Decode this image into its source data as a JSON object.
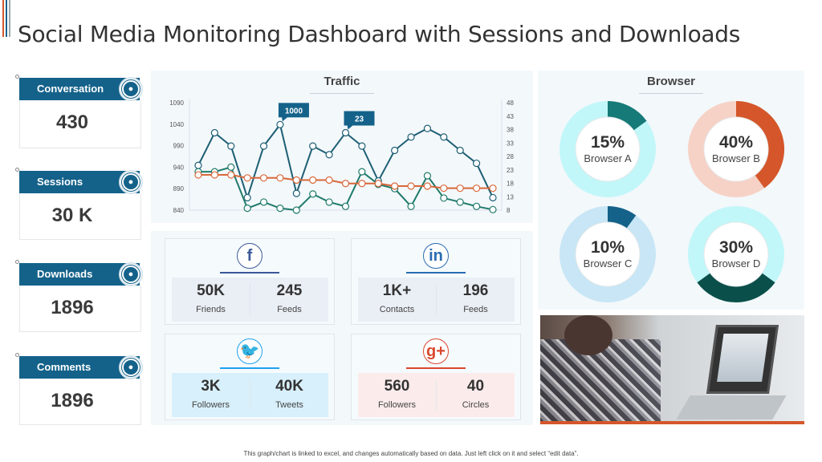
{
  "title": "Social Media Monitoring Dashboard with Sessions and Downloads",
  "kpis": [
    {
      "label": "Conversation",
      "value": "430",
      "icon": "money-hand-icon"
    },
    {
      "label": "Sessions",
      "value": "30 K",
      "icon": "chat-bubble-icon"
    },
    {
      "label": "Downloads",
      "value": "1896",
      "icon": "cloud-download-icon"
    },
    {
      "label": "Comments",
      "value": "1896",
      "icon": "comment-icon"
    }
  ],
  "traffic": {
    "title": "Traffic"
  },
  "chart_data": {
    "type": "line",
    "title": "Traffic",
    "ylim_left": [
      840,
      1090
    ],
    "yticks_left": [
      "1090",
      "1040",
      "990",
      "940",
      "890",
      "840"
    ],
    "ylim_right": [
      8,
      48
    ],
    "yticks_right": [
      "48",
      "43",
      "38",
      "33",
      "28",
      "23",
      "18",
      "13",
      "8"
    ],
    "series": [
      {
        "axis": "left",
        "color": "#1e5f74",
        "values": [
          944,
          1020,
          989,
          869,
          989,
          1039,
          879,
          989,
          969,
          1020,
          989,
          908,
          979,
          1010,
          1030,
          1010,
          979,
          949,
          869
        ]
      },
      {
        "axis": "right",
        "color": "#1f7a6a",
        "values": [
          22.3,
          22.3,
          24,
          8.7,
          11,
          8.7,
          8,
          14,
          11,
          9.4,
          22.3,
          17.6,
          16,
          9.4,
          20.8,
          12.5,
          11,
          9.4,
          8.2
        ]
      },
      {
        "axis": "left",
        "color": "#d9683a",
        "values": [
          922,
          922,
          922,
          915,
          915,
          915,
          910,
          910,
          910,
          902,
          902,
          902,
          896,
          896,
          896,
          891,
          891,
          891,
          891
        ]
      }
    ],
    "annotations": [
      {
        "series": 0,
        "index": 5,
        "label": "1000"
      },
      {
        "series": 0,
        "index": 9,
        "label": "23"
      }
    ]
  },
  "social": [
    {
      "network": "facebook",
      "icon": "f",
      "color": "#3b5998",
      "bg": "#eaeff6",
      "stats": [
        {
          "value": "50K",
          "label": "Friends"
        },
        {
          "value": "245",
          "label": "Feeds"
        }
      ]
    },
    {
      "network": "linkedin",
      "icon": "in",
      "color": "#2b6cb0",
      "bg": "#eaeff6",
      "stats": [
        {
          "value": "1K+",
          "label": "Contacts"
        },
        {
          "value": "196",
          "label": "Feeds"
        }
      ]
    },
    {
      "network": "twitter",
      "icon": "🐦",
      "color": "#1da1f2",
      "bg": "#d8f0fb",
      "stats": [
        {
          "value": "3K",
          "label": "Followers"
        },
        {
          "value": "40K",
          "label": "Tweets"
        }
      ]
    },
    {
      "network": "google-plus",
      "icon": "g+",
      "color": "#d9482f",
      "bg": "#fbeceb",
      "stats": [
        {
          "value": "560",
          "label": "Followers"
        },
        {
          "value": "40",
          "label": "Circles"
        }
      ]
    }
  ],
  "browser": {
    "title": "Browser",
    "items": [
      {
        "label": "Browser A",
        "pct_text": "15%",
        "pct": 15,
        "start": 0,
        "color": "#157a78",
        "track": "#c2f7f9"
      },
      {
        "label": "Browser B",
        "pct_text": "40%",
        "pct": 40,
        "start": 0,
        "color": "#d4562a",
        "track": "#f6d2c6"
      },
      {
        "label": "Browser C",
        "pct_text": "10%",
        "pct": 10,
        "start": 0,
        "color": "#14628a",
        "track": "#c8e6f5"
      },
      {
        "label": "Browser D",
        "pct_text": "30%",
        "pct": 30,
        "start": 126,
        "color": "#0b4f4a",
        "track": "#c2f7f9"
      }
    ]
  },
  "footer": "This graph/chart is linked to excel, and changes automatically based on data. Just left click on it and select “edit data”."
}
